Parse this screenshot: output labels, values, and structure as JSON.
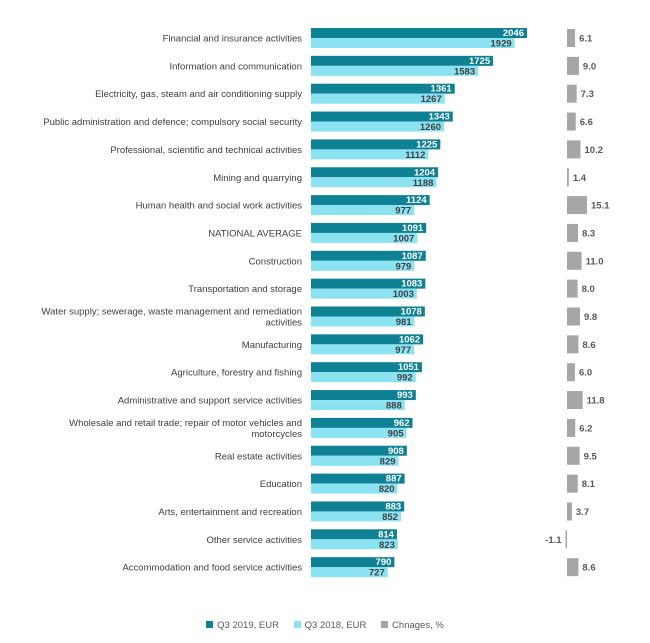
{
  "chart_data": {
    "type": "bar",
    "orientation": "horizontal",
    "categories": [
      "Financial and insurance activities",
      "Information and communication",
      "Electricity, gas, steam and air conditioning supply",
      "Public administration and defence; compulsory social security",
      "Professional, scientific and technical activities",
      "Mining and quarrying",
      "Human health and social work activities",
      "NATIONAL AVERAGE",
      "Construction",
      "Transportation and storage",
      "Water supply; sewerage, waste management and remediation activities",
      "Manufacturing",
      "Agriculture, forestry and fishing",
      "Administrative and support service activities",
      "Wholesale and retail trade; repair of motor vehicles and motorcycles",
      "Real estate activities",
      "Education",
      "Arts, entertainment and recreation",
      "Other service activities",
      "Accommodation and food service activities"
    ],
    "series": [
      {
        "name": "Q3 2019, EUR",
        "color": "#0e8294",
        "values": [
          2046,
          1725,
          1361,
          1343,
          1225,
          1204,
          1124,
          1091,
          1087,
          1083,
          1078,
          1062,
          1051,
          993,
          962,
          908,
          887,
          883,
          814,
          790
        ]
      },
      {
        "name": "Q3 2018, EUR",
        "color": "#8be3f2",
        "values": [
          1929,
          1583,
          1267,
          1260,
          1112,
          1188,
          977,
          1007,
          979,
          1003,
          981,
          977,
          992,
          888,
          905,
          829,
          820,
          852,
          823,
          727
        ]
      },
      {
        "name": "Chnages, %",
        "color": "#a6a6a6",
        "values": [
          6.1,
          9.0,
          7.3,
          6.6,
          10.2,
          1.4,
          15.1,
          8.3,
          11.0,
          8.0,
          9.8,
          8.6,
          6.0,
          11.8,
          6.2,
          9.5,
          8.1,
          3.7,
          -1.1,
          8.6
        ]
      }
    ],
    "change_labels": [
      "6.1",
      "9.0",
      "7.3",
      "6.6",
      "10.2",
      "1.4",
      "15.1",
      "8.3",
      "11.0",
      "8.0",
      "9.8",
      "8.6",
      "6.0",
      "11.8",
      "6.2",
      "9.5",
      "8.1",
      "3.7",
      "-1.1",
      "8.6"
    ],
    "xlim": [
      0,
      2100
    ],
    "grid": false,
    "legend_position": "bottom"
  }
}
